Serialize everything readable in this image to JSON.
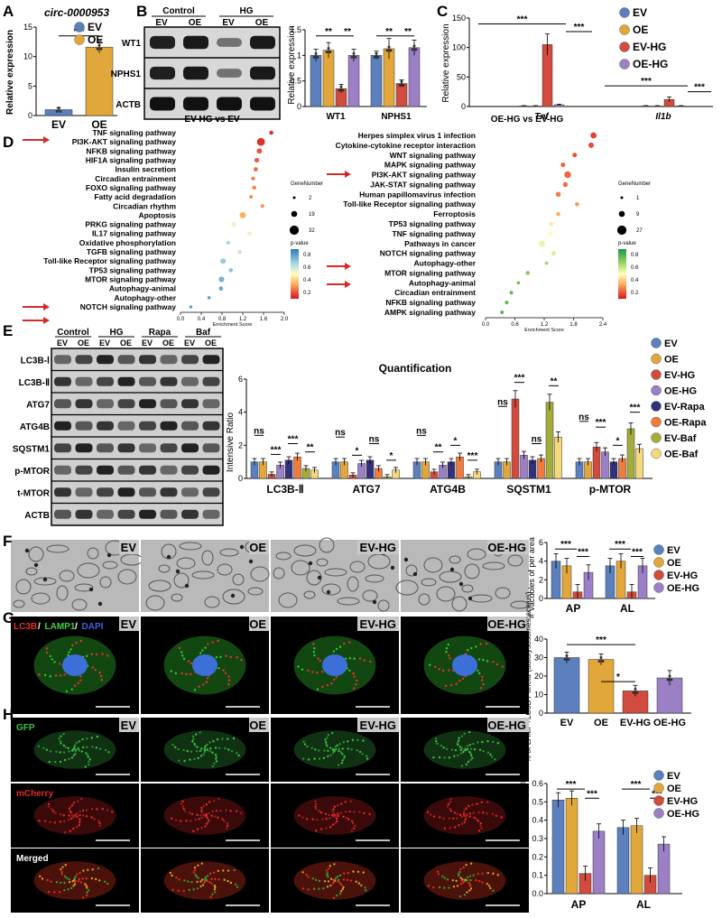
{
  "colors": {
    "ev": "#5b80bd",
    "oe": "#e2a73a",
    "ev_hg": "#d14b3e",
    "oe_hg": "#9b80c6",
    "ev_rapa": "#33317a",
    "oe_rapa": "#f07b3c",
    "ev_baf": "#a5ad3a",
    "oe_baf": "#f5d87a"
  },
  "panel_letters": [
    "A",
    "B",
    "C",
    "D",
    "E",
    "F",
    "G",
    "H"
  ],
  "A": {
    "title": "circ-0000953",
    "ylabel": "Relative expression",
    "legend": [
      "EV",
      "OE"
    ],
    "sig": "***",
    "chart_data": {
      "type": "bar",
      "categories": [
        "EV",
        "OE"
      ],
      "values": [
        1.0,
        11.6
      ],
      "errors": [
        0.3,
        1.0
      ],
      "ylim": [
        0,
        15
      ],
      "yticks": [
        0,
        5,
        10,
        15
      ]
    }
  },
  "B": {
    "blot_groups": [
      "Control",
      "HG"
    ],
    "blot_lanes": [
      "EV",
      "OE",
      "EV",
      "OE"
    ],
    "blot_rows": [
      "WT1",
      "NPHS1",
      "ACTB"
    ],
    "ylabel": "Relative expression",
    "chart_data": {
      "type": "bar",
      "categories": [
        "WT1",
        "NPHS1"
      ],
      "series": [
        {
          "values": [
            1.0,
            1.0
          ]
        },
        {
          "values": [
            1.1,
            1.13
          ]
        },
        {
          "values": [
            0.35,
            0.45
          ]
        },
        {
          "values": [
            1.0,
            1.15
          ]
        }
      ],
      "errors": [
        [
          0.12,
          0.08
        ],
        [
          0.15,
          0.2
        ],
        [
          0.08,
          0.07
        ],
        [
          0.12,
          0.15
        ]
      ],
      "ylim": [
        0,
        1.5
      ],
      "yticks": [
        0,
        0.5,
        1,
        1.5
      ],
      "sig": [
        "**",
        "**",
        "**",
        "**"
      ]
    }
  },
  "C": {
    "ylabel": "Relative expression",
    "legend": [
      "EV",
      "OE",
      "EV-HG",
      "OE-HG"
    ],
    "chart_data": {
      "type": "bar",
      "categories": [
        "Tnf",
        "Il1b"
      ],
      "series": [
        {
          "values": [
            1,
            1
          ]
        },
        {
          "values": [
            1,
            1
          ]
        },
        {
          "values": [
            105,
            12
          ]
        },
        {
          "values": [
            3,
            1
          ]
        }
      ],
      "errors": [
        [
          0.5,
          0.5
        ],
        [
          0.5,
          0.5
        ],
        [
          18,
          4
        ],
        [
          1,
          0.5
        ]
      ],
      "ylim": [
        0,
        150
      ],
      "yticks": [
        0,
        50,
        100,
        150
      ],
      "sig": [
        "***",
        "***",
        "***",
        "***"
      ]
    }
  },
  "D1": {
    "title": "EV-HG vs EV",
    "xlabel": "Enrichment Score",
    "legend_size_title": "GeneNumber",
    "legend_size_values": [
      "2",
      "19",
      "32"
    ],
    "legend_color_title": "p-value",
    "legend_color_ticks": [
      "0.8",
      "0.6",
      "0.4",
      "0.2"
    ],
    "chart_data": {
      "type": "scatter",
      "x_ticks": [
        "0.0",
        "0.4",
        "0.8",
        "1.2",
        "1.6",
        "2.0"
      ],
      "xlim": [
        0,
        2.0
      ],
      "pathways": [
        "TNF signaling pathway",
        "PI3K-AKT signaling pathway",
        "NFKB signaling pathway",
        "HIF1A signaling pathway",
        "Insulin secretion",
        "Circadian entrainment",
        "FOXO signaling pathway",
        "Fatty acid degradation",
        "Circadian rhythm",
        "Apoptosis",
        "PRKG signaling pathway",
        "IL17 signaling pathway",
        "Oxidative phosphorylation",
        "TGFB signaling pathway",
        "Toll-like Receptor signaling pathway",
        "TP53 signaling pathway",
        "MTOR signaling pathway",
        "Autophagy-animal",
        "Autophagy-other",
        "NOTCH signaling pathway"
      ],
      "x": [
        1.75,
        1.55,
        1.52,
        1.47,
        1.45,
        1.4,
        1.42,
        1.36,
        1.58,
        1.2,
        1.03,
        1.33,
        0.92,
        1.14,
        0.82,
        0.97,
        0.79,
        0.78,
        0.55,
        0.2
      ],
      "size": [
        8,
        30,
        14,
        11,
        9,
        7,
        8,
        6,
        7,
        18,
        12,
        8,
        8,
        9,
        14,
        8,
        15,
        9,
        5,
        4
      ],
      "p": [
        0.05,
        0.05,
        0.12,
        0.14,
        0.17,
        0.2,
        0.22,
        0.24,
        0.26,
        0.3,
        0.55,
        0.45,
        0.7,
        0.62,
        0.75,
        0.78,
        0.82,
        0.85,
        0.88,
        0.92
      ]
    }
  },
  "D2": {
    "title": "OE-HG vs EV-HG",
    "xlabel": "Enrichment Score",
    "legend_size_title": "GeneNumber",
    "legend_size_values": [
      "1",
      "9",
      "27"
    ],
    "legend_color_title": "p-value",
    "legend_color_ticks": [
      "0.8",
      "0.6",
      "0.4",
      "0.2"
    ],
    "chart_data": {
      "type": "scatter",
      "x_ticks": [
        "0.0",
        "0.6",
        "1.2",
        "1.8",
        "2.4"
      ],
      "xlim": [
        0,
        2.5
      ],
      "pathways": [
        "Herpes simplex virus 1 infection",
        "Cytokine-cytokine receptor interaction",
        "WNT signaling pathway",
        "MAPK signaling pathway",
        "PI3K-AKT signaling pathway",
        "JAK-STAT signaling pathway",
        "Human papillomavirus infection",
        "Toll-like Receptor signaling pathway",
        "Ferroptosis",
        "TP53 signaling pathway",
        "TNF signaling pathway",
        "Pathways in cancer",
        "NOTCH signaling pathway",
        "Autophagy-other",
        "MTOR signaling pathway",
        "Autophagy-animal",
        "Circadian entrainment",
        "NFKB signaling pathway",
        "AMPK signaling pathway"
      ],
      "x": [
        2.3,
        2.25,
        1.9,
        1.65,
        1.75,
        1.7,
        1.55,
        1.95,
        1.55,
        1.4,
        1.38,
        1.2,
        1.45,
        1.3,
        0.9,
        0.7,
        0.55,
        0.45,
        0.35
      ],
      "size": [
        18,
        14,
        10,
        10,
        22,
        12,
        12,
        8,
        8,
        9,
        12,
        18,
        9,
        6,
        8,
        5,
        6,
        6,
        6
      ],
      "p": [
        0.08,
        0.1,
        0.12,
        0.15,
        0.16,
        0.18,
        0.2,
        0.25,
        0.3,
        0.45,
        0.5,
        0.55,
        0.6,
        0.7,
        0.78,
        0.82,
        0.85,
        0.86,
        0.88
      ]
    }
  },
  "E": {
    "blot_groups": [
      "Control",
      "HG",
      "Rapa",
      "Baf"
    ],
    "blot_lanes": [
      "EV",
      "OE",
      "EV",
      "OE",
      "EV",
      "OE",
      "EV",
      "OE"
    ],
    "blot_rows": [
      "LC3B-Ⅰ",
      "LC3B-Ⅱ",
      "ATG7",
      "ATG4B",
      "SQSTM1",
      "p-MTOR",
      "t-MTOR",
      "ACTB"
    ],
    "title": "Quantification",
    "ylabel": "Intensive Ratio",
    "legend": [
      "EV",
      "OE",
      "EV-HG",
      "OE-HG",
      "EV-Rapa",
      "OE-Rapa",
      "EV-Baf",
      "OE-Baf"
    ],
    "chart_data": {
      "type": "bar",
      "categories": [
        "LC3B-Ⅱ",
        "ATG7",
        "ATG4B",
        "SQSTM1",
        "p-MTOR"
      ],
      "ylim": [
        0,
        6
      ],
      "yticks": [
        0,
        2,
        4,
        6
      ],
      "series": [
        {
          "values": [
            1.0,
            1.0,
            1.0,
            1.0,
            1.0
          ]
        },
        {
          "values": [
            1.0,
            1.0,
            1.0,
            1.0,
            1.0
          ]
        },
        {
          "values": [
            0.25,
            0.2,
            0.4,
            4.8,
            1.9
          ]
        },
        {
          "values": [
            0.8,
            0.9,
            0.8,
            1.4,
            1.6
          ]
        },
        {
          "values": [
            1.1,
            1.1,
            1.0,
            1.1,
            1.0
          ]
        },
        {
          "values": [
            1.3,
            0.6,
            1.3,
            1.2,
            1.2
          ]
        },
        {
          "values": [
            0.6,
            0.1,
            0.1,
            4.6,
            3.0
          ]
        },
        {
          "values": [
            0.5,
            0.5,
            0.4,
            2.5,
            1.8
          ]
        }
      ],
      "sig": [
        [
          "ns",
          "***",
          "***",
          "**"
        ],
        [
          "ns",
          "*",
          "ns",
          "*"
        ],
        [
          "ns",
          "**",
          "*",
          "***"
        ],
        [
          "ns",
          "***",
          "ns",
          "**"
        ],
        [
          "ns",
          "***",
          "*",
          "***"
        ]
      ]
    }
  },
  "F": {
    "labels": [
      "EV",
      "OE",
      "EV-HG",
      "OE-HG"
    ],
    "ylabel": "# Vacuoles of per area",
    "legend": [
      "EV",
      "OE",
      "EV-HG",
      "OE-HG"
    ],
    "chart_data": {
      "type": "bar",
      "categories": [
        "AP",
        "AL"
      ],
      "series": [
        {
          "values": [
            4.0,
            3.5
          ]
        },
        {
          "values": [
            3.5,
            4.0
          ]
        },
        {
          "values": [
            0.7,
            0.7
          ]
        },
        {
          "values": [
            2.8,
            3.5
          ]
        }
      ],
      "ylim": [
        0,
        6
      ],
      "yticks": [
        0,
        2,
        4,
        6
      ],
      "sig": [
        "***",
        "***",
        "***",
        "***"
      ]
    }
  },
  "G": {
    "stain": [
      "LC3B",
      "/",
      "LAMP1",
      "/",
      "DAPI"
    ],
    "labels": [
      "EV",
      "OE",
      "EV-HG",
      "OE-HG"
    ],
    "ylabel": "% of LAMP+LC3B Puncta (autolysosomes:acinus)",
    "chart_data": {
      "type": "bar",
      "categories": [
        "EV",
        "OE",
        "EV-HG",
        "OE-HG"
      ],
      "values": [
        30,
        29,
        12,
        19
      ],
      "errors": [
        3,
        3,
        3,
        4
      ],
      "ylim": [
        0,
        40
      ],
      "yticks": [
        0,
        10,
        20,
        30,
        40
      ],
      "sig": [
        "***",
        "*"
      ]
    }
  },
  "H": {
    "labels": [
      "EV",
      "OE",
      "EV-HG",
      "OE-HG"
    ],
    "rows": [
      "GFP",
      "mCherry",
      "Merged"
    ],
    "ylabel": "# Autophagic Vacuoles:Acinus",
    "legend": [
      "EV",
      "OE",
      "EV-HG",
      "OE-HG"
    ],
    "chart_data": {
      "type": "bar",
      "categories": [
        "AP",
        "AL"
      ],
      "series": [
        {
          "values": [
            0.51,
            0.36
          ]
        },
        {
          "values": [
            0.52,
            0.37
          ]
        },
        {
          "values": [
            0.11,
            0.1
          ]
        },
        {
          "values": [
            0.34,
            0.27
          ]
        }
      ],
      "ylim": [
        0,
        0.6
      ],
      "yticks": [
        0,
        0.1,
        0.2,
        0.3,
        0.4,
        0.5,
        0.6
      ],
      "sig": [
        "***",
        "***",
        "***",
        "***"
      ]
    }
  }
}
